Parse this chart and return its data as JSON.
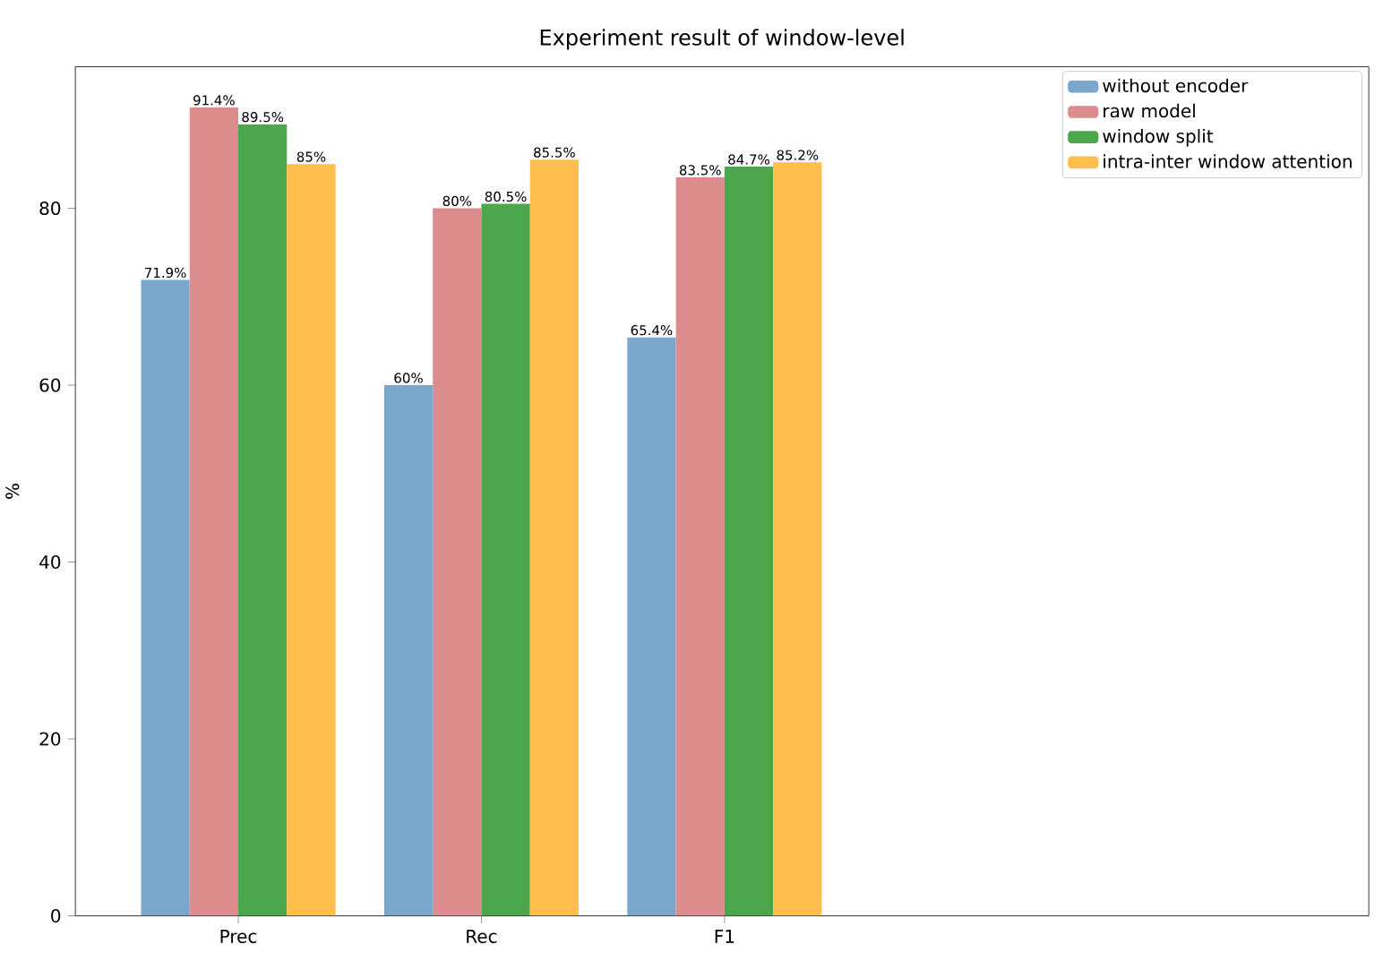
{
  "chart_data": {
    "type": "bar",
    "title": "Experiment result of window-level",
    "ylabel": "%",
    "categories": [
      "Prec",
      "Rec",
      "F1"
    ],
    "series": [
      {
        "name": "without encoder",
        "color": "#7ba7cc",
        "values": [
          71.9,
          60,
          65.4
        ],
        "value_labels": [
          "71.9%",
          "60%",
          "65.4%"
        ]
      },
      {
        "name": "raw model",
        "color": "#dc8c8c",
        "values": [
          91.4,
          80,
          83.5
        ],
        "value_labels": [
          "91.4%",
          "80%",
          "83.5%"
        ]
      },
      {
        "name": "window split",
        "color": "#4ca64c",
        "values": [
          89.5,
          80.5,
          84.7
        ],
        "value_labels": [
          "89.5%",
          "80.5%",
          "84.7%"
        ]
      },
      {
        "name": "intra-inter window attention",
        "color": "#ffbf4c",
        "values": [
          85,
          85.5,
          85.2
        ],
        "value_labels": [
          "85%",
          "85.5%",
          "85.2%"
        ]
      }
    ],
    "ylim": [
      0,
      96
    ],
    "yticks": [
      0,
      20,
      40,
      60,
      80
    ],
    "legend": "top right"
  }
}
